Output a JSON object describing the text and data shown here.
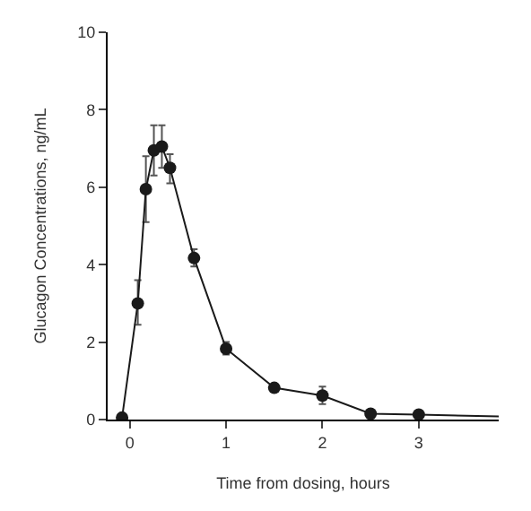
{
  "chart_data": {
    "type": "line",
    "xlabel": "Time from dosing, hours",
    "ylabel": "Glucagon Concentrations, ng/mL",
    "xlim": [
      -0.23,
      3.83
    ],
    "xticks": [
      0,
      1,
      2,
      3
    ],
    "ylim": [
      0,
      10
    ],
    "yticks": [
      0,
      2,
      4,
      6,
      8,
      10
    ],
    "series": [
      {
        "color": "#1a1a1a",
        "marker": "circle",
        "x": [
          -0.08,
          0.083,
          0.167,
          0.25,
          0.333,
          0.417,
          0.667,
          1,
          1.5,
          2,
          2.5,
          3
        ],
        "values": [
          0.05,
          3.0,
          5.95,
          6.95,
          7.05,
          6.5,
          4.17,
          1.83,
          0.82,
          0.62,
          0.15,
          0.13
        ],
        "errors": [
          null,
          [
            2.45,
            3.6
          ],
          [
            5.1,
            6.8
          ],
          [
            6.3,
            7.6
          ],
          [
            6.5,
            7.6
          ],
          [
            6.1,
            6.85
          ],
          [
            3.95,
            4.4
          ],
          [
            1.68,
            2.0
          ],
          null,
          [
            0.4,
            0.85
          ],
          null,
          null
        ]
      },
      {
        "color": "#1a1a1a",
        "marker": "none",
        "x": [
          3,
          3.83
        ],
        "values": [
          0.13,
          0.08
        ]
      }
    ]
  }
}
